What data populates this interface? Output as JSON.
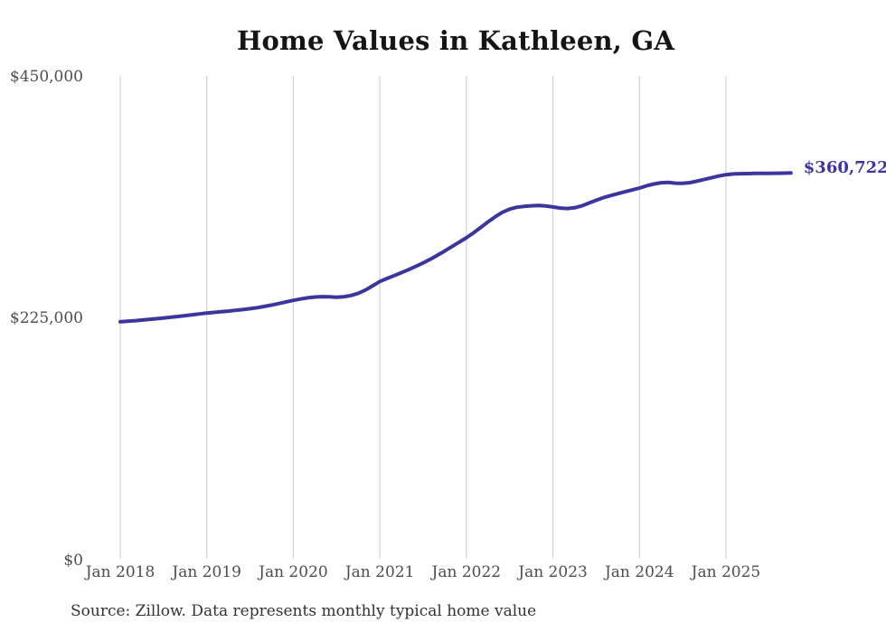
{
  "chart_data": {
    "type": "line",
    "title": "Home Values in Kathleen, GA",
    "xlabel": "",
    "ylabel": "",
    "ylim": [
      0,
      450000
    ],
    "grid": "vertical-only",
    "legend": "none",
    "x_frequency": "monthly",
    "x_start": "Jan 2018",
    "x_end": "Oct 2025",
    "x_ticks": [
      "Jan 2018",
      "Jan 2019",
      "Jan 2020",
      "Jan 2021",
      "Jan 2022",
      "Jan 2023",
      "Jan 2024",
      "Jan 2025"
    ],
    "y_ticks": [
      {
        "label": "$450,000",
        "value": 450000
      },
      {
        "label": "$225,000",
        "value": 225000
      },
      {
        "label": "$0",
        "value": 0
      }
    ],
    "series": [
      {
        "name": "Monthly typical home value",
        "values": [
          222600,
          223100,
          223600,
          224200,
          224800,
          225400,
          226100,
          226800,
          227500,
          228300,
          229100,
          229900,
          230700,
          231300,
          231900,
          232500,
          233200,
          233900,
          234700,
          235700,
          236800,
          238100,
          239500,
          241000,
          242500,
          243700,
          244800,
          245600,
          245900,
          245700,
          245400,
          245800,
          247000,
          249000,
          252000,
          256000,
          260000,
          262800,
          265500,
          268200,
          271000,
          274000,
          277200,
          280700,
          284400,
          288300,
          292400,
          296500,
          300600,
          305200,
          310200,
          315300,
          320100,
          324200,
          327200,
          328900,
          329700,
          330300,
          330500,
          330100,
          329200,
          328200,
          327800,
          328400,
          330200,
          332800,
          335400,
          337800,
          339800,
          341500,
          343300,
          345000,
          346700,
          348800,
          350500,
          351700,
          351900,
          351300,
          351100,
          351800,
          353200,
          354800,
          356300,
          357900,
          359200,
          359800,
          360100,
          360200,
          360300,
          360400,
          360400,
          360500,
          360600,
          360722
        ]
      }
    ],
    "end_label": "$360,722",
    "final_value": 360722,
    "line_color": "#3b35a0",
    "gridline_color": "#cccccc",
    "label_color": "#4d4d4d"
  },
  "source_note": "Source: Zillow. Data represents monthly typical home value"
}
